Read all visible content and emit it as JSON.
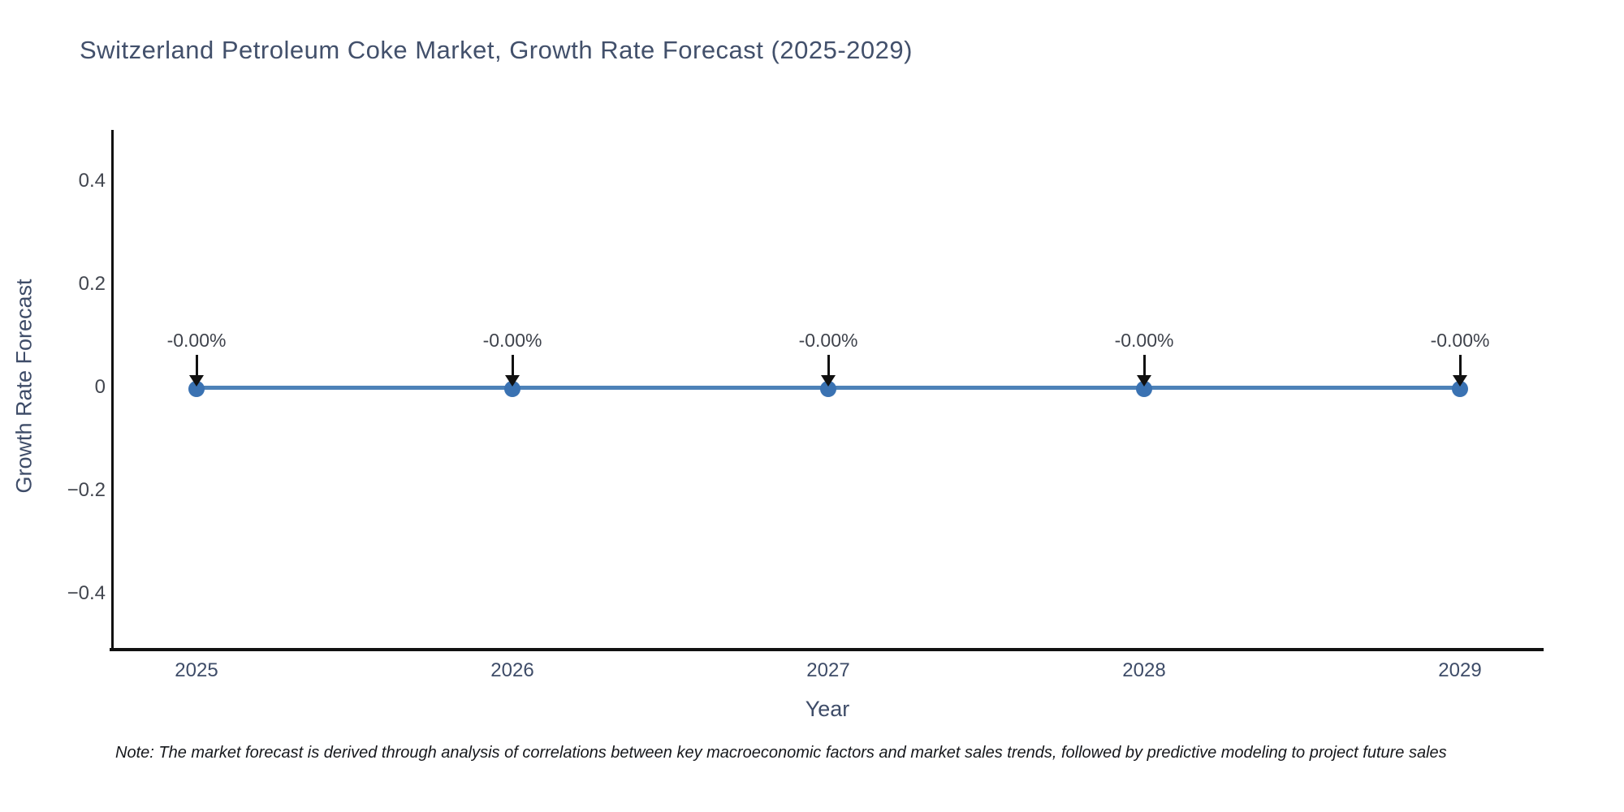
{
  "chart": {
    "title": "Switzerland Petroleum Coke Market, Growth Rate Forecast (2025-2029)",
    "xlabel": "Year",
    "ylabel": "Growth Rate Forecast",
    "note": "Note: The market forecast is derived through analysis of correlations between key macroeconomic factors and market sales trends, followed by predictive modeling to project future sales"
  },
  "chart_data": {
    "type": "line",
    "x": [
      2025,
      2026,
      2027,
      2028,
      2029
    ],
    "values": [
      0,
      0,
      0,
      0,
      0
    ],
    "point_labels": [
      "-0.00%",
      "-0.00%",
      "-0.00%",
      "-0.00%",
      "-0.00%"
    ],
    "x_tick_labels": [
      "2025",
      "2026",
      "2027",
      "2028",
      "2029"
    ],
    "y_ticks": [
      0.4,
      0.2,
      0,
      -0.2,
      -0.4
    ],
    "y_tick_labels": [
      "0.4",
      "0.2",
      "0",
      "−0.2",
      "−0.4"
    ],
    "title": "Switzerland Petroleum Coke Market, Growth Rate Forecast (2025-2029)",
    "xlabel": "Year",
    "ylabel": "Growth Rate Forecast",
    "ylim": [
      -0.51,
      0.5
    ],
    "grid": false,
    "legend": "none",
    "line_color": "#4d82b8",
    "marker_color": "#3a72b2",
    "annotation_arrow_color": "#111111"
  }
}
